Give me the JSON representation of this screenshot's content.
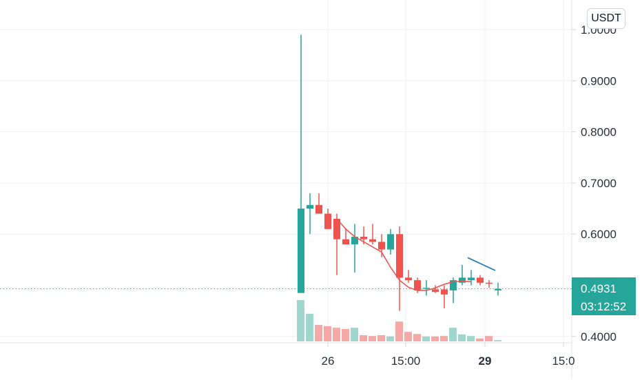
{
  "currency_button": {
    "label": "USDT"
  },
  "chart_data": {
    "type": "candlestick",
    "y_ticks": [
      "1.0000",
      "0.9000",
      "0.8000",
      "0.7000",
      "0.6000",
      "0.4000"
    ],
    "ylim": [
      0.39,
      1.0
    ],
    "x_ticks": [
      {
        "label": "26",
        "bold": false
      },
      {
        "label": "15:00",
        "bold": false
      },
      {
        "label": "29",
        "bold": true
      },
      {
        "label": "15:0",
        "bold": false
      }
    ],
    "last_price": {
      "value": 0.4931,
      "label": "0.4931",
      "countdown": "03:12:52"
    },
    "candles": [
      {
        "o": 0.485,
        "h": 0.99,
        "l": 0.485,
        "c": 0.65,
        "v": 1.0
      },
      {
        "o": 0.65,
        "h": 0.68,
        "l": 0.6,
        "c": 0.657,
        "v": 0.67
      },
      {
        "o": 0.657,
        "h": 0.68,
        "l": 0.64,
        "c": 0.64,
        "v": 0.4
      },
      {
        "o": 0.64,
        "h": 0.65,
        "l": 0.61,
        "c": 0.61,
        "v": 0.37
      },
      {
        "o": 0.63,
        "h": 0.64,
        "l": 0.52,
        "c": 0.59,
        "v": 0.33
      },
      {
        "o": 0.59,
        "h": 0.61,
        "l": 0.58,
        "c": 0.58,
        "v": 0.3
      },
      {
        "o": 0.58,
        "h": 0.62,
        "l": 0.525,
        "c": 0.595,
        "v": 0.33
      },
      {
        "o": 0.595,
        "h": 0.615,
        "l": 0.58,
        "c": 0.59,
        "v": 0.15
      },
      {
        "o": 0.59,
        "h": 0.62,
        "l": 0.58,
        "c": 0.585,
        "v": 0.13
      },
      {
        "o": 0.585,
        "h": 0.6,
        "l": 0.555,
        "c": 0.57,
        "v": 0.15
      },
      {
        "o": 0.57,
        "h": 0.61,
        "l": 0.56,
        "c": 0.6,
        "v": 0.12
      },
      {
        "o": 0.6,
        "h": 0.615,
        "l": 0.45,
        "c": 0.515,
        "v": 0.48
      },
      {
        "o": 0.515,
        "h": 0.53,
        "l": 0.505,
        "c": 0.51,
        "v": 0.23
      },
      {
        "o": 0.51,
        "h": 0.515,
        "l": 0.485,
        "c": 0.49,
        "v": 0.18
      },
      {
        "o": 0.495,
        "h": 0.51,
        "l": 0.48,
        "c": 0.495,
        "v": 0.12
      },
      {
        "o": 0.492,
        "h": 0.5,
        "l": 0.485,
        "c": 0.487,
        "v": 0.12
      },
      {
        "o": 0.492,
        "h": 0.5,
        "l": 0.455,
        "c": 0.482,
        "v": 0.13
      },
      {
        "o": 0.49,
        "h": 0.515,
        "l": 0.465,
        "c": 0.51,
        "v": 0.33
      },
      {
        "o": 0.505,
        "h": 0.54,
        "l": 0.5,
        "c": 0.515,
        "v": 0.17
      },
      {
        "o": 0.51,
        "h": 0.53,
        "l": 0.5,
        "c": 0.515,
        "v": 0.13
      },
      {
        "o": 0.515,
        "h": 0.52,
        "l": 0.5,
        "c": 0.505,
        "v": 0.07
      },
      {
        "o": 0.505,
        "h": 0.51,
        "l": 0.495,
        "c": 0.503,
        "v": 0.13
      },
      {
        "o": 0.49,
        "h": 0.505,
        "l": 0.48,
        "c": 0.493,
        "v": 0.03
      }
    ],
    "moving_average": [
      0.63,
      0.61,
      0.595,
      0.585,
      0.575,
      0.565,
      0.535,
      0.51,
      0.496,
      0.49,
      0.49,
      0.495,
      0.502,
      0.507,
      0.508,
      0.507
    ],
    "trend_line": [
      0.554,
      0.529
    ],
    "colors": {
      "up": "#26a69a",
      "down": "#ef5350",
      "volume_up": "#9fd6cd",
      "volume_down": "#f5a9a7",
      "moving_average": "#ef5350",
      "trend_line": "#2a7fbd",
      "price_line": "#26a69a",
      "grid": "#eef0f3",
      "axis": "#d1d4dc"
    }
  }
}
